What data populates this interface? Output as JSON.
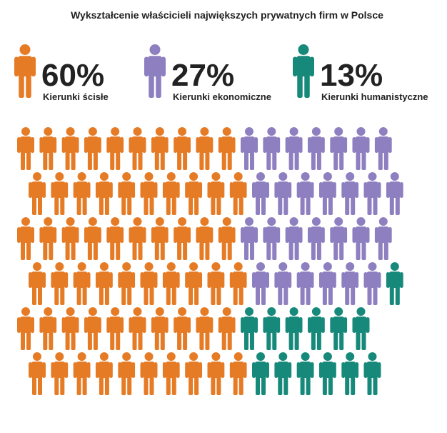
{
  "chart_data": {
    "type": "pictogram",
    "title": "Wykształcenie właścicieli największych prywatnych firm w Polsce",
    "series": [
      {
        "name": "Kierunki ścisłe",
        "color": "#e67b25",
        "values": [
          60
        ],
        "value_labels": [
          "60%"
        ]
      },
      {
        "name": "Kierunki ekonomiczne",
        "color": "#8d7fc0",
        "values": [
          27
        ],
        "value_labels": [
          "27%"
        ]
      },
      {
        "name": "Kierunki humanistyczne",
        "color": "#17897a",
        "values": [
          13
        ],
        "value_labels": [
          "13%"
        ]
      }
    ]
  }
}
